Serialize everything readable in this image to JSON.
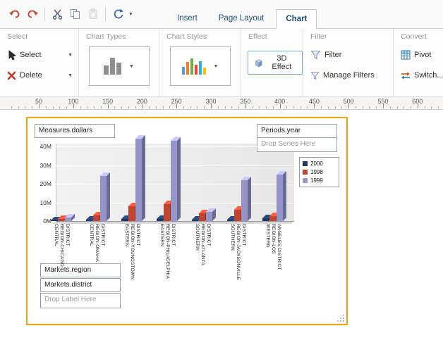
{
  "toolbar": {
    "tabs": [
      {
        "label": "Insert",
        "active": false
      },
      {
        "label": "Page Layout",
        "active": false
      },
      {
        "label": "Chart",
        "active": true
      }
    ]
  },
  "ribbon": {
    "select_group": {
      "title": "Select",
      "select_label": "Select",
      "delete_label": "Delete"
    },
    "chart_types_group": {
      "title": "Chart Types"
    },
    "chart_styles_group": {
      "title": "Chart Styles"
    },
    "effect_group": {
      "title": "Effect",
      "button_label": "3D Effect",
      "active": true
    },
    "filter_group": {
      "title": "Filter",
      "filter_label": "Filter",
      "manage_label": "Manage Filters"
    },
    "convert_group": {
      "title": "Convert",
      "pivot_label": "Pivot",
      "switch_label": "Switch..."
    }
  },
  "ruler": {
    "major_labels": [
      50,
      100,
      150,
      200,
      250,
      300,
      350,
      400,
      450,
      500,
      550,
      600
    ]
  },
  "designer": {
    "measures_chip": "Measures.dollars",
    "periods_chip": "Periods.year",
    "drop_series_text": "Drop Series Here",
    "region_chip": "Markets.region",
    "district_chip": "Markets.district",
    "drop_label_text": "Drop Label Here"
  },
  "chart_data": {
    "type": "bar",
    "effect": "3d",
    "categories": [
      "CENTRAL REGION-CHICAGO DISTRICT",
      "CENTRAL REGION-OMAHA DISTRICT",
      "EASTERN REGION-YOUNGSTOWN DISTRICT",
      "EASTERN REGION-PHILADELPHIA DISTRICT",
      "SOUTHERN REGION-ATLANTA DISTRICT",
      "SOUTHERN REGION-JACKSONVILLE DISTRICT",
      "WESTERN REGION-LOS ANGELES DISTRICT"
    ],
    "series": [
      {
        "name": "2000",
        "color": "#1F3864",
        "values": [
          0.5,
          0.8,
          1.0,
          1.0,
          0.6,
          0.8,
          1.5
        ]
      },
      {
        "name": "1998",
        "color": "#C0452F",
        "values": [
          1.2,
          3.0,
          8.0,
          9.0,
          4.0,
          6.0,
          2.5
        ]
      },
      {
        "name": "1999",
        "color": "#9595C9",
        "values": [
          1.8,
          24.0,
          44.0,
          43.0,
          5.0,
          22.0,
          25.0
        ]
      }
    ],
    "y_ticks": [
      "0M",
      "10M",
      "20M",
      "30M",
      "40M"
    ],
    "ylim": [
      0,
      44
    ],
    "unit": "M",
    "legend_position": "top-right",
    "grid": true
  }
}
